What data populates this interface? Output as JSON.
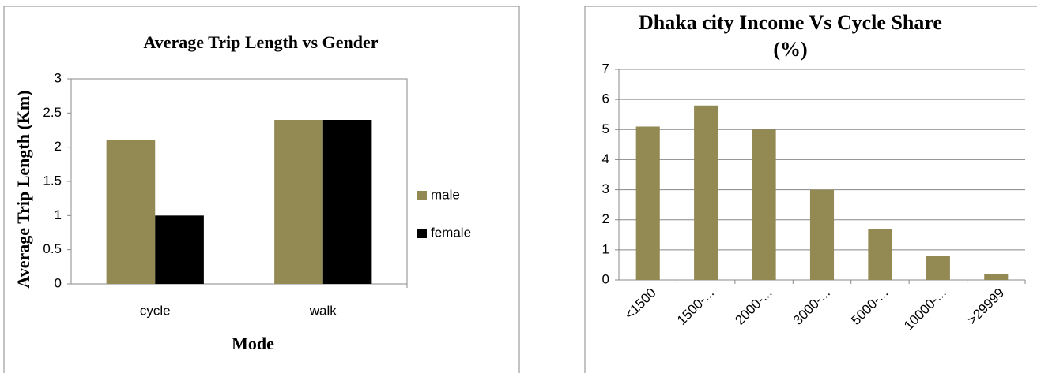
{
  "chart_data": [
    {
      "type": "bar",
      "title": "Average Trip Length vs Gender",
      "y_label": "Average Trip Length (Km)",
      "x_label": "Mode",
      "categories": [
        "cycle",
        "walk"
      ],
      "series": [
        {
          "name": "male",
          "color": "#938953",
          "values": [
            2.1,
            2.4
          ]
        },
        {
          "name": "female",
          "color": "#000000",
          "values": [
            1.0,
            2.4
          ]
        }
      ],
      "ylim": [
        0,
        3
      ],
      "yticks": [
        0,
        0.5,
        1,
        1.5,
        2,
        2.5,
        3
      ],
      "grid": false,
      "legend": "right"
    },
    {
      "type": "bar",
      "title": "Dhaka city Income Vs Cycle Share  (%)",
      "categories": [
        "<1500",
        "1500-...",
        "2000-...",
        "3000-...",
        "5000-...",
        "10000-...",
        ">29999"
      ],
      "values": [
        5.1,
        5.8,
        5.0,
        3.0,
        1.7,
        0.8,
        0.2
      ],
      "color": "#938953",
      "ylim": [
        0,
        7
      ],
      "yticks": [
        0,
        1,
        2,
        3,
        4,
        5,
        6,
        7
      ],
      "grid": true
    }
  ]
}
